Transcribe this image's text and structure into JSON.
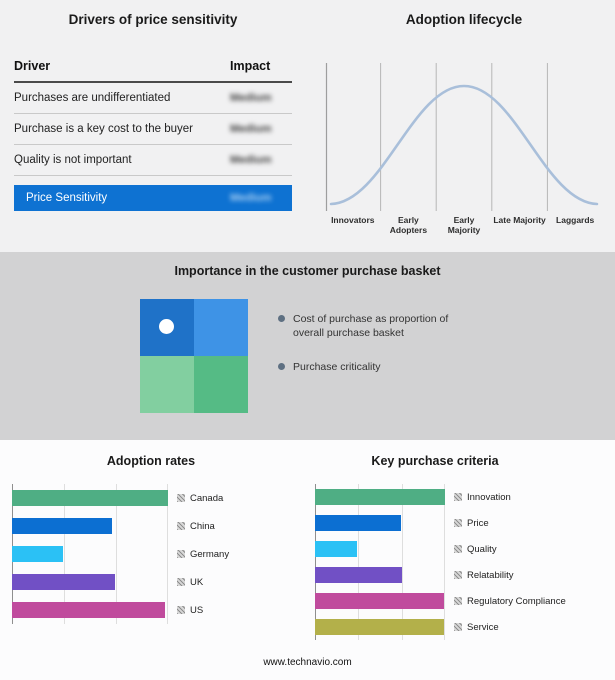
{
  "footer": {
    "url": "www.technavio.com"
  },
  "drivers_panel": {
    "title": "Drivers of price sensitivity",
    "table": {
      "headers": [
        "Driver",
        "Impact"
      ],
      "rows": [
        {
          "driver": "Purchases are undifferentiated",
          "impact": "Medium"
        },
        {
          "driver": "Purchase is a key cost to the buyer",
          "impact": "Medium"
        },
        {
          "driver": "Quality is not important",
          "impact": "Medium"
        }
      ],
      "highlight_row": {
        "driver": "Price Sensitivity",
        "impact": "Medium"
      },
      "highlight_color": "#0e72d2"
    }
  },
  "importance_panel": {
    "title": "Importance in the customer purchase basket",
    "bullets": [
      "Cost of purchase as proportion of overall purchase basket",
      "Purchase criticality"
    ],
    "quadrant_colors": [
      "#1f72c8",
      "#3e93e6",
      "#82cfa0",
      "#55bb85"
    ]
  },
  "chart_data": [
    {
      "type": "line",
      "title": "Adoption lifecycle",
      "x_categories": [
        "Innovators",
        "Early Adopters",
        "Early Majority",
        "Late Majority",
        "Laggards"
      ],
      "color": "#a9bfda",
      "shape": "bell curve across five adopter stages, unlabeled y-axis",
      "grid": "vertical stage dividers",
      "legend": "none"
    },
    {
      "type": "bar",
      "orientation": "horizontal",
      "title": "Adoption rates",
      "categories": [
        "Canada",
        "China",
        "Germany",
        "UK",
        "US"
      ],
      "values": [
        100,
        64,
        33,
        66,
        98
      ],
      "colors": [
        "#4fae84",
        "#0c6fd2",
        "#2bc1f5",
        "#7150c5",
        "#c04b9d"
      ],
      "xlim": [
        0,
        100
      ],
      "grid": "vertical gridlines at 0/33/67/100, axis unlabeled",
      "legend": "none"
    },
    {
      "type": "bar",
      "orientation": "horizontal",
      "title": "Key purchase criteria",
      "categories": [
        "Innovation",
        "Price",
        "Quality",
        "Relatability",
        "Regulatory Compliance",
        "Service"
      ],
      "values": [
        100,
        66,
        32,
        67,
        99,
        99
      ],
      "colors": [
        "#4fae84",
        "#0c6fd2",
        "#2bc1f5",
        "#7150c5",
        "#c04b9d",
        "#b3b04a"
      ],
      "xlim": [
        0,
        100
      ],
      "grid": "vertical gridlines at 0/33/67/100, axis unlabeled",
      "legend": "none"
    }
  ]
}
